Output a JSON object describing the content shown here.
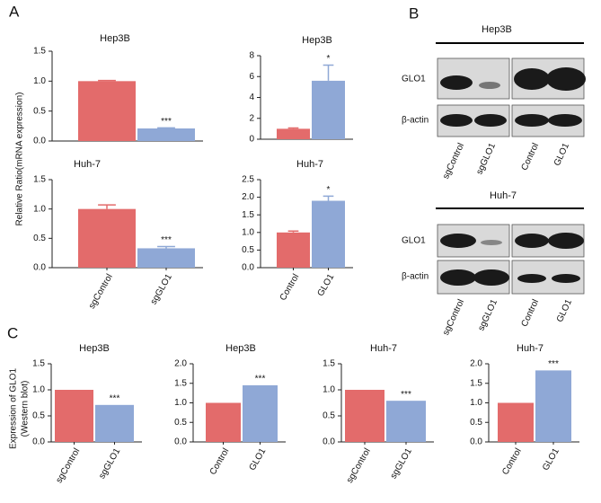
{
  "panels": [
    "A",
    "B",
    "C"
  ],
  "axis_labels": {
    "A": "Relative Ratio(mRNA expression)",
    "C": [
      "Expression of GLO1",
      "(Western blot)"
    ]
  },
  "chart_data": [
    {
      "type": "bar",
      "title": "Hep3B",
      "categories": [
        null,
        null
      ],
      "values": [
        1.0,
        0.21
      ],
      "errors": [
        0.01,
        0.01
      ],
      "colors": [
        "#e36b6b",
        "#8fa8d6"
      ],
      "annotation": "***",
      "ylim": [
        0,
        1.5
      ],
      "yticks": [
        {
          "value": 0,
          "label": "0.0"
        },
        {
          "value": 0.5,
          "label": "0.5"
        },
        {
          "value": 1,
          "label": "1.0"
        },
        {
          "value": 1.5,
          "label": "1.5"
        }
      ]
    },
    {
      "type": "bar",
      "title": "Hep3B",
      "categories": [
        null,
        null
      ],
      "values": [
        1.0,
        5.6
      ],
      "errors": [
        0.08,
        1.5
      ],
      "colors": [
        "#e36b6b",
        "#8fa8d6"
      ],
      "annotation": "*",
      "ylim": [
        0,
        8
      ],
      "yticks": [
        0,
        2,
        4,
        6,
        8
      ]
    },
    {
      "type": "bar",
      "title": "Huh-7",
      "categories": [
        "sgControl",
        "sgGLO1"
      ],
      "values": [
        1.0,
        0.33
      ],
      "errors": [
        0.07,
        0.03
      ],
      "colors": [
        "#e36b6b",
        "#8fa8d6"
      ],
      "annotation": "***",
      "ylim": [
        0,
        1.5
      ],
      "yticks": [
        {
          "value": 0,
          "label": "0.0"
        },
        {
          "value": 0.5,
          "label": "0.5"
        },
        {
          "value": 1,
          "label": "1.0"
        },
        {
          "value": 1.5,
          "label": "1.5"
        }
      ]
    },
    {
      "type": "bar",
      "title": "Huh-7",
      "categories": [
        "Control",
        "GLO1"
      ],
      "values": [
        1.0,
        1.9
      ],
      "errors": [
        0.04,
        0.13
      ],
      "colors": [
        "#e36b6b",
        "#8fa8d6"
      ],
      "annotation": "*",
      "ylim": [
        0,
        2.5
      ],
      "yticks": [
        {
          "value": 0,
          "label": "0.0"
        },
        {
          "value": 0.5,
          "label": "0.5"
        },
        {
          "value": 1,
          "label": "1.0"
        },
        {
          "value": 1.5,
          "label": "1.5"
        },
        {
          "value": 2,
          "label": "2.0"
        },
        {
          "value": 2.5,
          "label": "2.5"
        }
      ]
    },
    {
      "type": "bar",
      "title": "Hep3B",
      "categories": [
        "sgControl",
        "sgGLO1"
      ],
      "values": [
        1.0,
        0.71
      ],
      "colors": [
        "#e36b6b",
        "#8fa8d6"
      ],
      "annotation": "***",
      "ylim": [
        0,
        1.5
      ],
      "yticks": [
        {
          "value": 0,
          "label": "0.0"
        },
        {
          "value": 0.5,
          "label": "0.5"
        },
        {
          "value": 1,
          "label": "1.0"
        },
        {
          "value": 1.5,
          "label": "1.5"
        }
      ]
    },
    {
      "type": "bar",
      "title": "Hep3B",
      "categories": [
        "Control",
        "GLO1"
      ],
      "values": [
        1.0,
        1.45
      ],
      "colors": [
        "#e36b6b",
        "#8fa8d6"
      ],
      "annotation": "***",
      "ylim": [
        0,
        2
      ],
      "yticks": [
        {
          "value": 0,
          "label": "0.0"
        },
        {
          "value": 0.5,
          "label": "0.5"
        },
        {
          "value": 1,
          "label": "1.0"
        },
        {
          "value": 1.5,
          "label": "1.5"
        },
        {
          "value": 2,
          "label": "2.0"
        }
      ]
    },
    {
      "type": "bar",
      "title": "Huh-7",
      "categories": [
        "sgControl",
        "sgGLO1"
      ],
      "values": [
        1.0,
        0.79
      ],
      "colors": [
        "#e36b6b",
        "#8fa8d6"
      ],
      "annotation": "***",
      "ylim": [
        0,
        1.5
      ],
      "yticks": [
        {
          "value": 0,
          "label": "0.0"
        },
        {
          "value": 0.5,
          "label": "0.5"
        },
        {
          "value": 1,
          "label": "1.0"
        },
        {
          "value": 1.5,
          "label": "1.5"
        }
      ]
    },
    {
      "type": "bar",
      "title": "Huh-7",
      "categories": [
        "Control",
        "GLO1"
      ],
      "values": [
        1.0,
        1.83
      ],
      "colors": [
        "#e36b6b",
        "#8fa8d6"
      ],
      "annotation": "***",
      "ylim": [
        0,
        2
      ],
      "yticks": [
        {
          "value": 0,
          "label": "0.0"
        },
        {
          "value": 0.5,
          "label": "0.5"
        },
        {
          "value": 1,
          "label": "1.0"
        },
        {
          "value": 1.5,
          "label": "1.5"
        },
        {
          "value": 2,
          "label": "2.0"
        }
      ]
    }
  ],
  "blots": [
    {
      "title": "Hep3B",
      "rows": [
        "GLO1",
        "β-actin"
      ],
      "lanes": [
        "sgControl",
        "sgGLO1",
        "Control",
        "GLO1"
      ]
    },
    {
      "title": "Huh-7",
      "rows": [
        "GLO1",
        "β-actin"
      ],
      "lanes": [
        "sgControl",
        "sgGLO1",
        "Control",
        "GLO1"
      ]
    }
  ]
}
